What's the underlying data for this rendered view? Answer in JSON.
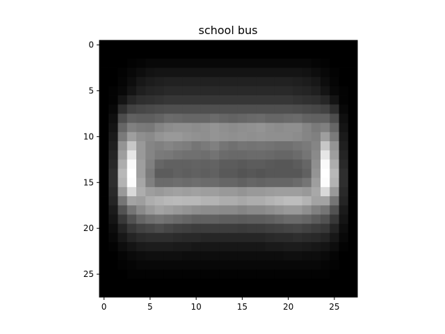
{
  "chart_data": {
    "type": "heatmap",
    "title": "school bus",
    "xlabel": "",
    "ylabel": "",
    "colormap": "gray",
    "rows": 28,
    "cols": 28,
    "x_ticks": [
      0,
      5,
      10,
      15,
      20,
      25
    ],
    "y_ticks": [
      0,
      5,
      10,
      15,
      20,
      25
    ],
    "y_axis_direction": "top-to-bottom",
    "grid": false,
    "legend": "none",
    "values": [
      [
        0,
        0,
        0,
        0,
        0,
        0,
        0,
        0,
        0,
        0,
        0,
        0,
        0,
        0,
        0,
        0,
        0,
        0,
        0,
        0,
        0,
        0,
        0,
        0,
        0,
        0,
        0,
        0
      ],
      [
        0,
        0,
        0,
        0,
        0,
        0,
        0,
        0,
        0,
        0,
        0,
        0,
        0,
        0,
        0,
        0,
        0,
        0,
        0,
        0,
        0,
        0,
        0,
        0,
        0,
        0,
        0,
        0
      ],
      [
        0,
        0,
        0,
        1,
        2,
        3,
        3,
        3,
        3,
        3,
        3,
        3,
        3,
        3,
        3,
        3,
        3,
        3,
        3,
        3,
        3,
        3,
        3,
        2,
        1,
        0,
        0,
        0
      ],
      [
        0,
        0,
        1,
        3,
        5,
        7,
        8,
        8,
        8,
        8,
        8,
        8,
        8,
        8,
        8,
        8,
        8,
        8,
        8,
        8,
        8,
        8,
        7,
        5,
        3,
        1,
        0,
        0
      ],
      [
        0,
        0,
        2,
        5,
        9,
        11,
        12,
        13,
        13,
        13,
        13,
        13,
        13,
        13,
        13,
        13,
        13,
        13,
        13,
        13,
        13,
        12,
        11,
        9,
        5,
        2,
        0,
        0
      ],
      [
        0,
        1,
        3,
        8,
        12,
        14,
        15,
        16,
        16,
        16,
        16,
        16,
        16,
        16,
        16,
        16,
        16,
        16,
        16,
        16,
        16,
        15,
        14,
        12,
        8,
        3,
        1,
        0
      ],
      [
        0,
        1,
        8,
        15,
        18,
        19,
        20,
        21,
        21,
        21,
        21,
        21,
        21,
        21,
        21,
        21,
        21,
        21,
        21,
        21,
        21,
        20,
        19,
        18,
        15,
        8,
        1,
        0
      ],
      [
        0,
        3,
        18,
        26,
        28,
        29,
        30,
        31,
        31,
        31,
        31,
        31,
        31,
        31,
        31,
        31,
        31,
        31,
        31,
        31,
        31,
        30,
        29,
        28,
        26,
        18,
        3,
        0
      ],
      [
        0,
        6,
        30,
        38,
        37,
        37,
        39,
        42,
        41,
        40,
        40,
        40,
        42,
        40,
        39,
        40,
        41,
        42,
        40,
        40,
        41,
        42,
        39,
        38,
        38,
        30,
        6,
        0
      ],
      [
        0,
        8,
        40,
        50,
        48,
        47,
        52,
        55,
        56,
        56,
        55,
        56,
        58,
        56,
        55,
        56,
        57,
        58,
        56,
        55,
        56,
        56,
        52,
        48,
        50,
        40,
        8,
        0
      ],
      [
        0,
        10,
        48,
        62,
        56,
        54,
        58,
        60,
        60,
        58,
        57,
        56,
        58,
        57,
        56,
        57,
        56,
        57,
        56,
        56,
        56,
        55,
        52,
        50,
        62,
        48,
        10,
        0
      ],
      [
        0,
        12,
        58,
        78,
        60,
        52,
        50,
        52,
        50,
        49,
        46,
        48,
        50,
        46,
        44,
        46,
        45,
        46,
        45,
        44,
        44,
        46,
        48,
        52,
        78,
        58,
        12,
        0
      ],
      [
        0,
        14,
        62,
        90,
        60,
        52,
        48,
        47,
        45,
        44,
        44,
        43,
        45,
        42,
        41,
        41,
        42,
        42,
        41,
        40,
        40,
        42,
        46,
        54,
        90,
        62,
        14,
        0
      ],
      [
        0,
        16,
        68,
        98,
        62,
        50,
        40,
        38,
        38,
        38,
        39,
        38,
        39,
        36,
        36,
        35,
        36,
        36,
        35,
        34,
        34,
        36,
        40,
        56,
        98,
        68,
        16,
        0
      ],
      [
        0,
        18,
        72,
        100,
        62,
        48,
        36,
        36,
        38,
        37,
        38,
        37,
        38,
        35,
        35,
        33,
        34,
        33,
        34,
        34,
        34,
        34,
        38,
        58,
        100,
        72,
        18,
        0
      ],
      [
        0,
        18,
        70,
        99,
        65,
        50,
        42,
        42,
        43,
        42,
        43,
        42,
        42,
        40,
        40,
        38,
        40,
        39,
        40,
        40,
        40,
        42,
        46,
        62,
        99,
        70,
        18,
        0
      ],
      [
        0,
        16,
        60,
        85,
        68,
        62,
        60,
        62,
        63,
        62,
        63,
        62,
        62,
        60,
        60,
        58,
        60,
        60,
        61,
        62,
        62,
        62,
        60,
        66,
        85,
        60,
        16,
        0
      ],
      [
        0,
        14,
        46,
        64,
        62,
        68,
        70,
        72,
        73,
        72,
        72,
        70,
        70,
        68,
        68,
        66,
        68,
        68,
        70,
        72,
        74,
        74,
        70,
        64,
        64,
        46,
        14,
        0
      ],
      [
        0,
        10,
        32,
        46,
        54,
        60,
        64,
        62,
        60,
        58,
        56,
        55,
        55,
        54,
        54,
        52,
        54,
        54,
        56,
        58,
        60,
        60,
        56,
        50,
        46,
        32,
        10,
        0
      ],
      [
        0,
        8,
        22,
        32,
        40,
        44,
        46,
        44,
        42,
        40,
        38,
        38,
        38,
        37,
        37,
        36,
        37,
        37,
        38,
        40,
        42,
        42,
        40,
        36,
        32,
        22,
        8,
        0
      ],
      [
        0,
        5,
        14,
        22,
        26,
        28,
        30,
        28,
        26,
        25,
        24,
        24,
        24,
        24,
        24,
        23,
        24,
        24,
        25,
        26,
        27,
        28,
        26,
        24,
        22,
        14,
        5,
        0
      ],
      [
        0,
        3,
        9,
        14,
        17,
        18,
        18,
        18,
        17,
        16,
        16,
        15,
        15,
        15,
        15,
        15,
        15,
        15,
        16,
        17,
        17,
        18,
        17,
        16,
        14,
        9,
        3,
        0
      ],
      [
        0,
        1,
        5,
        8,
        10,
        11,
        11,
        11,
        10,
        10,
        9,
        9,
        9,
        9,
        9,
        9,
        9,
        9,
        10,
        10,
        11,
        11,
        10,
        9,
        8,
        5,
        1,
        0
      ],
      [
        0,
        0,
        2,
        4,
        5,
        6,
        6,
        6,
        6,
        5,
        5,
        5,
        5,
        5,
        5,
        5,
        5,
        5,
        5,
        5,
        6,
        6,
        5,
        5,
        4,
        2,
        0,
        0
      ],
      [
        0,
        0,
        1,
        2,
        3,
        3,
        3,
        3,
        3,
        3,
        3,
        3,
        3,
        3,
        3,
        3,
        3,
        3,
        3,
        3,
        3,
        3,
        3,
        3,
        2,
        1,
        0,
        0
      ],
      [
        0,
        0,
        0,
        1,
        1,
        1,
        1,
        1,
        1,
        1,
        1,
        1,
        1,
        1,
        1,
        1,
        1,
        1,
        1,
        1,
        1,
        1,
        1,
        1,
        1,
        0,
        0,
        0
      ],
      [
        0,
        0,
        0,
        0,
        0,
        0,
        0,
        0,
        0,
        0,
        0,
        0,
        0,
        0,
        0,
        0,
        0,
        0,
        0,
        0,
        0,
        0,
        0,
        0,
        0,
        0,
        0,
        0
      ],
      [
        0,
        0,
        0,
        0,
        0,
        0,
        0,
        0,
        0,
        0,
        0,
        0,
        0,
        0,
        0,
        0,
        0,
        0,
        0,
        0,
        0,
        0,
        0,
        0,
        0,
        0,
        0,
        0
      ]
    ]
  }
}
